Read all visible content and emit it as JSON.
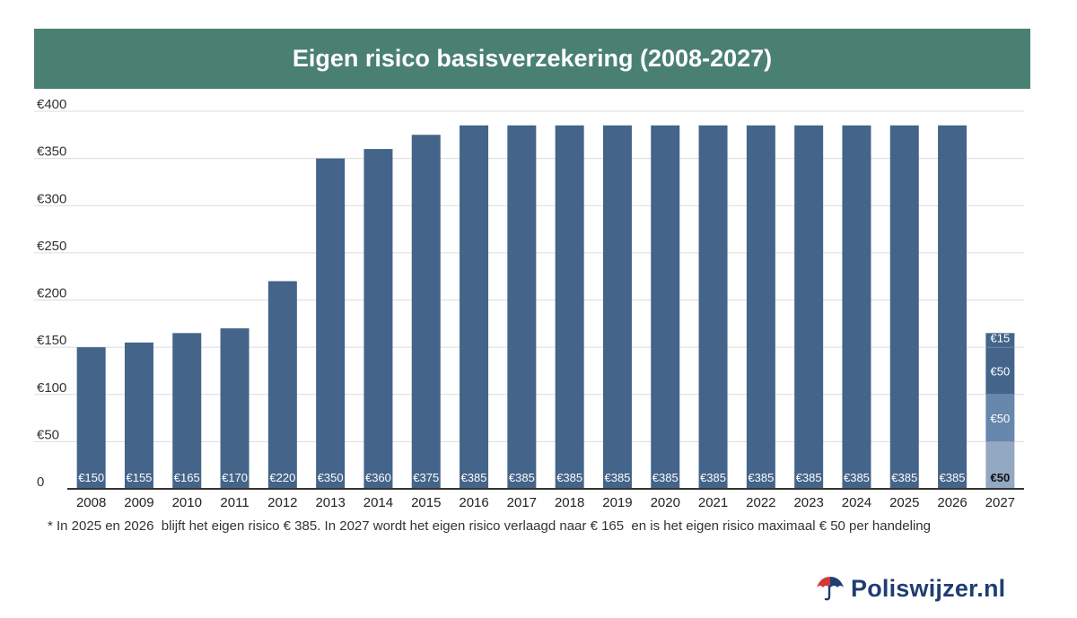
{
  "colors": {
    "header_bg": "#4a8071",
    "bar": "#44648a",
    "stack_base": "#93a9c3",
    "stack_mid": "#6787ad",
    "stack_top": "#44648a",
    "logo_red": "#d23a3a",
    "logo_navy": "#1f3d73"
  },
  "footnote": "* In 2025 en 2026  blijft het eigen risico € 385. In 2027 wordt het eigen risico verlaagd naar € 165  en is het eigen risico maximaal € 50 per handeling",
  "logo": {
    "text": "Poliswijzer.nl",
    "icon": "umbrella-icon"
  },
  "chart_data": {
    "type": "bar",
    "title": "Eigen risico basisverzekering (2008-2027)",
    "xlabel": "",
    "ylabel": "",
    "ylim": [
      0,
      400
    ],
    "yticks": [
      0,
      50,
      100,
      150,
      200,
      250,
      300,
      350,
      400
    ],
    "ytick_labels": [
      "0",
      "€50",
      "€100",
      "€150",
      "€200",
      "€250",
      "€300",
      "€350",
      "€400"
    ],
    "grid": true,
    "categories": [
      "2008",
      "2009",
      "2010",
      "2011",
      "2012",
      "2013",
      "2014",
      "2015",
      "2016",
      "2017",
      "2018",
      "2019",
      "2020",
      "2021",
      "2022",
      "2023",
      "2024",
      "2025",
      "2026",
      "2027"
    ],
    "values": [
      150,
      155,
      165,
      170,
      220,
      350,
      360,
      375,
      385,
      385,
      385,
      385,
      385,
      385,
      385,
      385,
      385,
      385,
      385,
      null
    ],
    "data_labels": [
      "€150",
      "€155",
      "€165",
      "€170",
      "€220",
      "€350",
      "€360",
      "€375",
      "€385",
      "€385",
      "€385",
      "€385",
      "€385",
      "€385",
      "€385",
      "€385",
      "€385",
      "€385",
      "€385",
      ""
    ],
    "stacked": {
      "category": "2027",
      "segments": [
        {
          "value": 50,
          "label": "€50",
          "color_key": "stack_base"
        },
        {
          "value": 50,
          "label": "€50",
          "color_key": "stack_mid"
        },
        {
          "value": 50,
          "label": "€50",
          "color_key": "stack_top"
        },
        {
          "value": 15,
          "label": "€15",
          "color_key": "stack_top"
        }
      ]
    }
  }
}
